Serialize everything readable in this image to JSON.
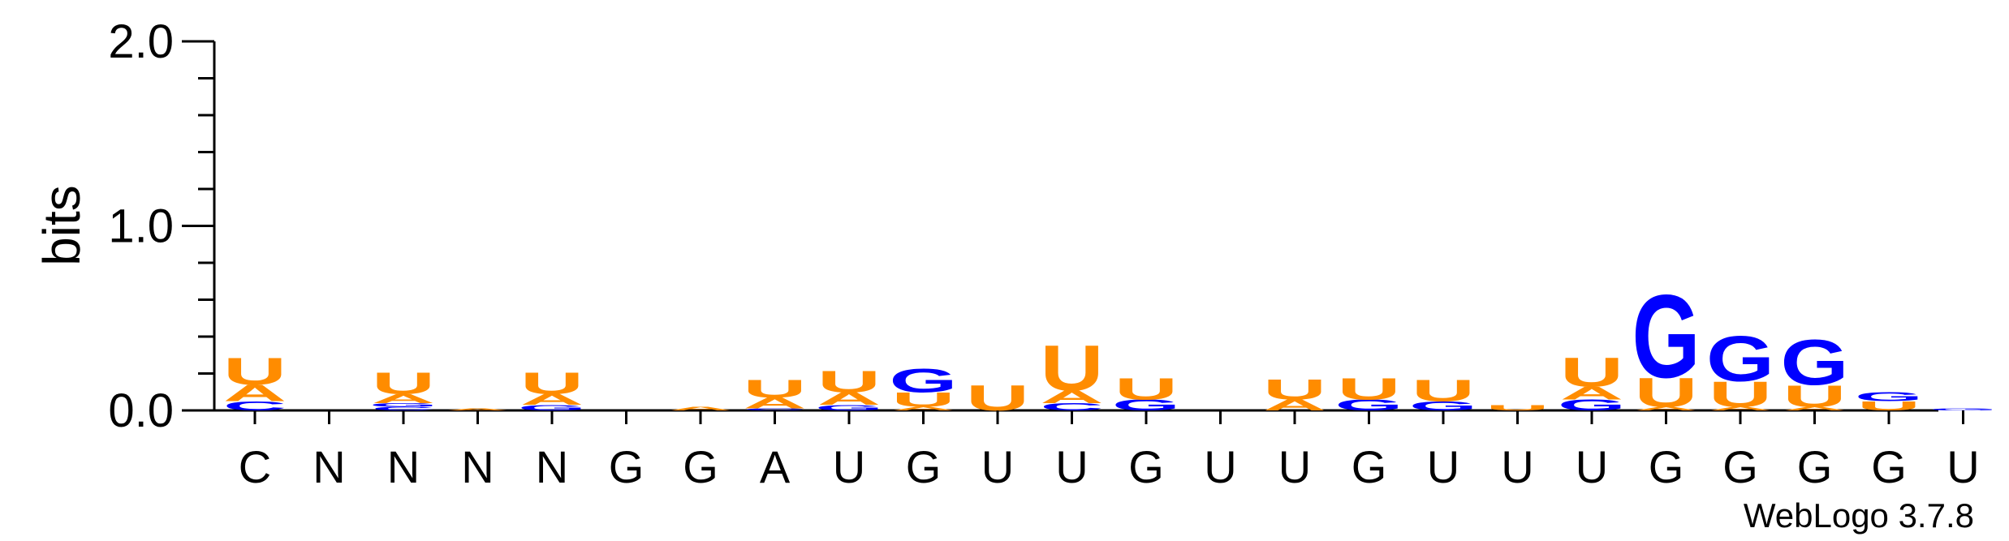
{
  "chart_data": {
    "type": "sequence-logo",
    "ylabel": "bits",
    "ylim": [
      0,
      2.0
    ],
    "yticks": [
      "0.0",
      "1.0",
      "2.0"
    ],
    "consensus": [
      "C",
      "N",
      "N",
      "N",
      "N",
      "G",
      "G",
      "A",
      "U",
      "G",
      "U",
      "U",
      "G",
      "U",
      "U",
      "G",
      "U",
      "U",
      "U",
      "G",
      "G",
      "G",
      "G",
      "U"
    ],
    "colors": {
      "U": "#FF8C00",
      "A": "#FF8C00",
      "G": "#0000FF",
      "C": "#0000FF"
    },
    "stacks": [
      [
        {
          "l": "C",
          "h": 0.05
        },
        {
          "l": "A",
          "h": 0.09
        },
        {
          "l": "U",
          "h": 0.15
        }
      ],
      [],
      [
        {
          "l": "C",
          "h": 0.02
        },
        {
          "l": "G",
          "h": 0.02
        },
        {
          "l": "A",
          "h": 0.05
        },
        {
          "l": "U",
          "h": 0.12
        }
      ],
      [
        {
          "l": "A",
          "h": 0.01
        }
      ],
      [
        {
          "l": "G",
          "h": 0.03
        },
        {
          "l": "A",
          "h": 0.06
        },
        {
          "l": "U",
          "h": 0.12
        }
      ],
      [],
      [
        {
          "l": "A",
          "h": 0.02
        }
      ],
      [
        {
          "l": "C",
          "h": 0.01
        },
        {
          "l": "A",
          "h": 0.06
        },
        {
          "l": "U",
          "h": 0.1
        }
      ],
      [
        {
          "l": "G",
          "h": 0.03
        },
        {
          "l": "A",
          "h": 0.07
        },
        {
          "l": "U",
          "h": 0.12
        }
      ],
      [
        {
          "l": "A",
          "h": 0.02
        },
        {
          "l": "U",
          "h": 0.08
        },
        {
          "l": "G",
          "h": 0.13
        }
      ],
      [
        {
          "l": "U",
          "h": 0.14
        }
      ],
      [
        {
          "l": "C",
          "h": 0.04
        },
        {
          "l": "A",
          "h": 0.07
        },
        {
          "l": "U",
          "h": 0.25
        }
      ],
      [
        {
          "l": "G",
          "h": 0.06
        },
        {
          "l": "U",
          "h": 0.12
        }
      ],
      [],
      [
        {
          "l": "A",
          "h": 0.06
        },
        {
          "l": "U",
          "h": 0.11
        }
      ],
      [
        {
          "l": "G",
          "h": 0.06
        },
        {
          "l": "U",
          "h": 0.12
        }
      ],
      [
        {
          "l": "G",
          "h": 0.05
        },
        {
          "l": "U",
          "h": 0.12
        }
      ],
      [
        {
          "l": "U",
          "h": 0.03
        }
      ],
      [
        {
          "l": "G",
          "h": 0.06
        },
        {
          "l": "A",
          "h": 0.07
        },
        {
          "l": "U",
          "h": 0.16
        }
      ],
      [
        {
          "l": "A",
          "h": 0.02
        },
        {
          "l": "U",
          "h": 0.16
        },
        {
          "l": "G",
          "h": 0.46
        }
      ],
      [
        {
          "l": "A",
          "h": 0.02
        },
        {
          "l": "U",
          "h": 0.14
        },
        {
          "l": "G",
          "h": 0.25
        }
      ],
      [
        {
          "l": "A",
          "h": 0.02
        },
        {
          "l": "U",
          "h": 0.12
        },
        {
          "l": "G",
          "h": 0.25
        }
      ],
      [
        {
          "l": "U",
          "h": 0.05
        },
        {
          "l": "G",
          "h": 0.05
        }
      ],
      [
        {
          "l": "G",
          "h": 0.01
        }
      ]
    ]
  },
  "footer": {
    "credit": "WebLogo 3.7.8"
  }
}
